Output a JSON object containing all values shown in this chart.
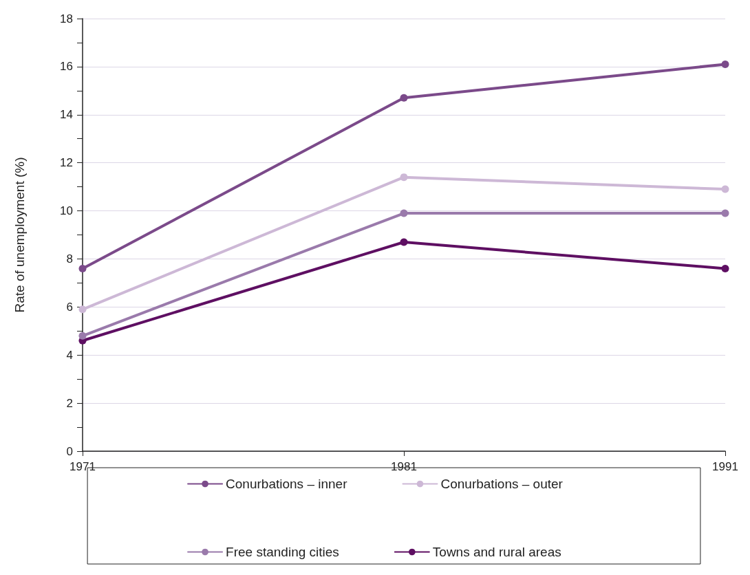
{
  "chart_data": {
    "type": "line",
    "ylabel": "Rate of unemployment (%)",
    "x": [
      1971,
      1981,
      1991
    ],
    "xlim": [
      1971,
      1991
    ],
    "xticks": [
      1971,
      1981,
      1991
    ],
    "ylim": [
      0,
      18
    ],
    "yticks": [
      0,
      {
        "value": 1,
        "label": null
      },
      2,
      {
        "value": 3,
        "label": null
      },
      4,
      {
        "value": 5,
        "label": null
      },
      6,
      {
        "value": 7,
        "label": null
      },
      8,
      {
        "value": 9,
        "label": null
      },
      10,
      {
        "value": 11,
        "label": null
      },
      12,
      {
        "value": 13,
        "label": null
      },
      14,
      {
        "value": 15,
        "label": null
      },
      16,
      {
        "value": 17,
        "label": null
      },
      18
    ],
    "grid": "y",
    "legend": "bottom",
    "marker": "circle",
    "line_style": "solid",
    "series": [
      {
        "name": "Conurbations – inner",
        "color": "#7b4a8a",
        "values": [
          7.6,
          14.7,
          16.1
        ]
      },
      {
        "name": "Conurbations – outer",
        "color": "#cdb8d6",
        "values": [
          5.9,
          11.4,
          10.9
        ]
      },
      {
        "name": "Free standing cities",
        "color": "#9a7aab",
        "values": [
          4.8,
          9.9,
          9.9
        ]
      },
      {
        "name": "Towns and rural areas",
        "color": "#5e0f62",
        "values": [
          4.6,
          8.7,
          7.6
        ]
      }
    ]
  }
}
